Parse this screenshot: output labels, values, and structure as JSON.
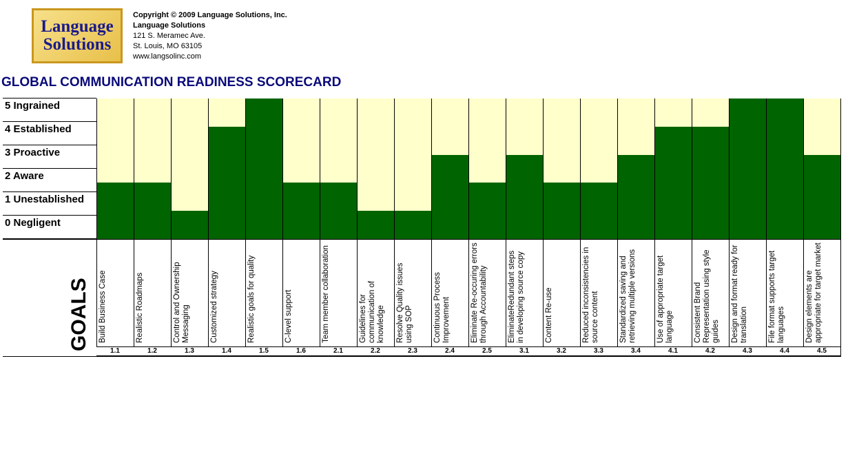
{
  "header": {
    "copyright": "Copyright © 2009 Language Solutions, Inc.",
    "company": "Language Solutions",
    "address1": "121 S. Meramec Ave.",
    "address2": "St. Louis, MO 63105",
    "website": "www.langsolinc.com",
    "logo_line1": "Language",
    "logo_line2": "Solutions"
  },
  "title": "GLOBAL COMMUNICATION READINESS SCORECARD",
  "goals_label": "GOALS",
  "chart_data": {
    "type": "bar",
    "title": "GLOBAL COMMUNICATION READINESS SCORECARD",
    "ylim": [
      0,
      5
    ],
    "levels": [
      "5 Ingrained",
      "4 Established",
      "3 Proactive",
      "2 Aware",
      "1 Unestablished",
      "0 Negligent"
    ],
    "categories": [
      "1.1",
      "1.2",
      "1.3",
      "1.4",
      "1.5",
      "1.6",
      "2.1",
      "2.2",
      "2.3",
      "2.4",
      "2.5",
      "3.1",
      "3.2",
      "3.3",
      "3.4",
      "4.1",
      "4.2",
      "4.3",
      "4.4",
      "4.5"
    ],
    "goals": [
      "Build Business Case",
      "Realistic Roadmaps",
      "Control and Ownership Messaging",
      "Customized strategy",
      "Realistic goals for quality",
      "C-level support",
      "Team member collaboration",
      "Guidelines for communication of knowledge",
      "Resolve Quality issues using SOP",
      "Continuous Process Improvement",
      "Eliminate Re-occuring errors through Accountability",
      "EliminateRedundant steps in developing source copy",
      "Content Re-use",
      "Reduced inconsistencies in source content",
      "Standardized saving and retrieving multiple versions",
      "Use of appropriate target language",
      "Consistent Brand Representation using style guides",
      "Design and format ready for translation",
      "File format supports target languages",
      "Design elements are appropriate for target market"
    ],
    "values": [
      2,
      2,
      1,
      4,
      5,
      2,
      2,
      1,
      1,
      3,
      2,
      3,
      2,
      2,
      3,
      4,
      4,
      5,
      5,
      3
    ],
    "colors": {
      "achieved": "#006400",
      "remaining": "#ffffcc"
    }
  }
}
